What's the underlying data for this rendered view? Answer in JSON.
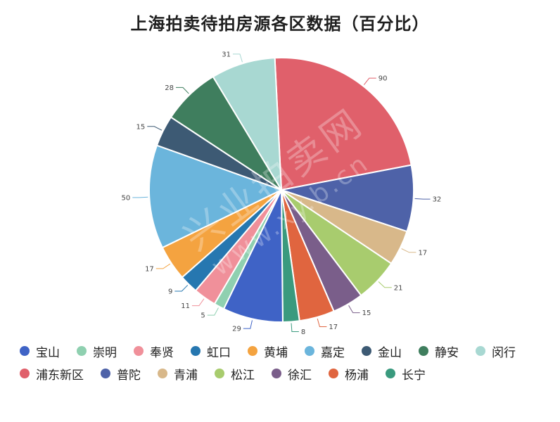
{
  "chart_data": {
    "type": "pie",
    "title": "上海拍卖待拍房源各区数据（百分比）",
    "slices": [
      {
        "name": "浦东新区",
        "value": 90,
        "color": "#e0606b"
      },
      {
        "name": "普陀",
        "value": 32,
        "color": "#4e62a8"
      },
      {
        "name": "青浦",
        "value": 17,
        "color": "#d8b88a"
      },
      {
        "name": "松江",
        "value": 21,
        "color": "#a8cc6e"
      },
      {
        "name": "徐汇",
        "value": 15,
        "color": "#7a5e8a"
      },
      {
        "name": "杨浦",
        "value": 17,
        "color": "#e0653f"
      },
      {
        "name": "长宁",
        "value": 8,
        "color": "#3a9a7e"
      },
      {
        "name": "宝山",
        "value": 29,
        "color": "#3f63c6"
      },
      {
        "name": "崇明",
        "value": 5,
        "color": "#8fd0b0"
      },
      {
        "name": "奉贤",
        "value": 11,
        "color": "#f0909a"
      },
      {
        "name": "虹口",
        "value": 9,
        "color": "#2677b0"
      },
      {
        "name": "黄埔",
        "value": 17,
        "color": "#f4a340"
      },
      {
        "name": "嘉定",
        "value": 50,
        "color": "#6bb5dc"
      },
      {
        "name": "金山",
        "value": 15,
        "color": "#3d5a74"
      },
      {
        "name": "静安",
        "value": 28,
        "color": "#3f7e5e"
      },
      {
        "name": "闵行",
        "value": 31,
        "color": "#a8d8d2"
      }
    ],
    "legend_position": "bottom",
    "legend": [
      {
        "name": "宝山",
        "color": "#3f63c6"
      },
      {
        "name": "崇明",
        "color": "#8fd0b0"
      },
      {
        "name": "奉贤",
        "color": "#f0909a"
      },
      {
        "name": "虹口",
        "color": "#2677b0"
      },
      {
        "name": "黄埔",
        "color": "#f4a340"
      },
      {
        "name": "嘉定",
        "color": "#6bb5dc"
      },
      {
        "name": "金山",
        "color": "#3d5a74"
      },
      {
        "name": "静安",
        "color": "#3f7e5e"
      },
      {
        "name": "闵行",
        "color": "#a8d8d2"
      },
      {
        "name": "浦东新区",
        "color": "#e0606b"
      },
      {
        "name": "普陀",
        "color": "#4e62a8"
      },
      {
        "name": "青浦",
        "color": "#d8b88a"
      },
      {
        "name": "松江",
        "color": "#a8cc6e"
      },
      {
        "name": "徐汇",
        "color": "#7a5e8a"
      },
      {
        "name": "杨浦",
        "color": "#e0653f"
      },
      {
        "name": "长宁",
        "color": "#3a9a7e"
      }
    ]
  },
  "watermark": {
    "line1": "兴业拍卖网",
    "line2": "www.xy.b.cn"
  }
}
